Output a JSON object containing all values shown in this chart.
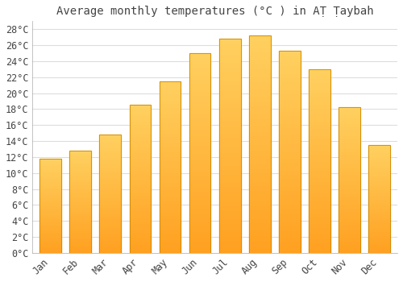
{
  "title": "Average monthly temperatures (°C ) in AṬ Ṭaybah",
  "months": [
    "Jan",
    "Feb",
    "Mar",
    "Apr",
    "May",
    "Jun",
    "Jul",
    "Aug",
    "Sep",
    "Oct",
    "Nov",
    "Dec"
  ],
  "values": [
    11.8,
    12.8,
    14.8,
    18.5,
    21.5,
    25.0,
    26.8,
    27.2,
    25.3,
    23.0,
    18.2,
    13.5
  ],
  "bar_color_bottom": "#FFA020",
  "bar_color_top": "#FFD060",
  "bar_edge_color": "#CC8800",
  "background_color": "#FFFFFF",
  "plot_bg_color": "#FFFFFF",
  "grid_color": "#DDDDDD",
  "text_color": "#444444",
  "ylim": [
    0,
    29
  ],
  "ytick_step": 2,
  "title_fontsize": 10,
  "tick_fontsize": 8.5
}
